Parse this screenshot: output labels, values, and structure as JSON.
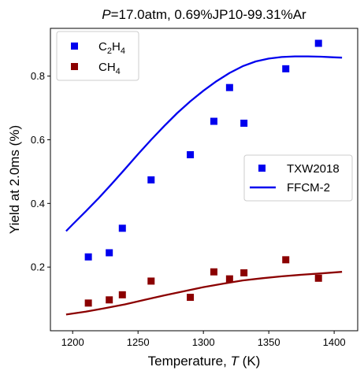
{
  "chart_data": {
    "type": "scatter",
    "title": {
      "italic_part": "P",
      "rest": "=17.0atm, 0.69%JP10-99.31%Ar"
    },
    "xlabel": {
      "text": "Temperature, ",
      "italic_part": "T",
      "unit": " (K)"
    },
    "ylabel": "Yield at 2.0ms (%)",
    "xlim": [
      1183,
      1418
    ],
    "ylim": [
      0.0,
      0.95
    ],
    "xticks": [
      1200,
      1250,
      1300,
      1350,
      1400
    ],
    "yticks": [
      0.2,
      0.4,
      0.6,
      0.8
    ],
    "xtick_labels": [
      "1200",
      "1250",
      "1300",
      "1350",
      "1400"
    ],
    "ytick_labels": [
      "0.2",
      "0.4",
      "0.6",
      "0.8"
    ],
    "grid": false,
    "series": [
      {
        "name": "C2H4",
        "kind": "scatter",
        "marker": "square",
        "color": "#0000ee",
        "x": [
          1212,
          1228,
          1238,
          1260,
          1290,
          1308,
          1320,
          1331,
          1363,
          1388
        ],
        "y": [
          0.232,
          0.245,
          0.322,
          0.474,
          0.553,
          0.658,
          0.764,
          0.652,
          0.823,
          0.903
        ]
      },
      {
        "name": "CH4",
        "kind": "scatter",
        "marker": "square",
        "color": "#8b0000",
        "x": [
          1212,
          1228,
          1238,
          1260,
          1290,
          1308,
          1320,
          1331,
          1363,
          1388
        ],
        "y": [
          0.087,
          0.097,
          0.113,
          0.156,
          0.105,
          0.185,
          0.163,
          0.182,
          0.223,
          0.165
        ]
      },
      {
        "name": "C2H4 FFCM-2",
        "kind": "line",
        "color": "#0000ee",
        "x": [
          1195,
          1200,
          1210,
          1220,
          1230,
          1240,
          1250,
          1260,
          1270,
          1280,
          1290,
          1300,
          1310,
          1320,
          1330,
          1340,
          1350,
          1360,
          1370,
          1380,
          1390,
          1400,
          1406
        ],
        "y": [
          0.313,
          0.334,
          0.375,
          0.417,
          0.462,
          0.508,
          0.555,
          0.6,
          0.643,
          0.684,
          0.721,
          0.754,
          0.784,
          0.81,
          0.831,
          0.846,
          0.855,
          0.86,
          0.862,
          0.862,
          0.861,
          0.859,
          0.858
        ]
      },
      {
        "name": "CH4 FFCM-2",
        "kind": "line",
        "color": "#8b0000",
        "x": [
          1195,
          1210,
          1225,
          1240,
          1255,
          1270,
          1285,
          1300,
          1315,
          1330,
          1345,
          1360,
          1375,
          1390,
          1406
        ],
        "y": [
          0.051,
          0.06,
          0.071,
          0.083,
          0.097,
          0.111,
          0.124,
          0.137,
          0.148,
          0.158,
          0.165,
          0.171,
          0.176,
          0.18,
          0.185
        ]
      }
    ],
    "legend_species": {
      "placement": "top-left",
      "entries": [
        {
          "base": "C",
          "sub1": "2",
          "mid": "H",
          "sub2": "4",
          "color": "#0000ee"
        },
        {
          "base": "CH",
          "sub1": "4",
          "mid": "",
          "sub2": "",
          "color": "#8b0000"
        }
      ]
    },
    "legend_source": {
      "placement": "center-right",
      "entries": [
        {
          "label": "TXW2018",
          "kind": "marker",
          "color": "#0000ee"
        },
        {
          "label": "FFCM-2",
          "kind": "line",
          "color": "#0000ee"
        }
      ]
    }
  }
}
